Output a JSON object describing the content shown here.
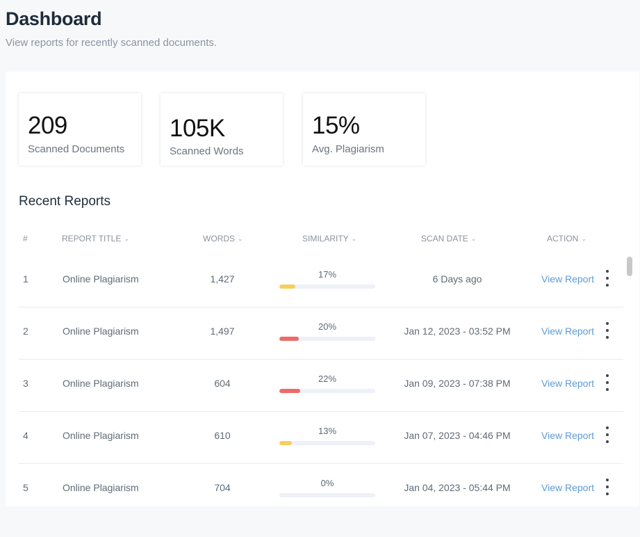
{
  "header": {
    "title": "Dashboard",
    "subtitle": "View reports for recently scanned documents."
  },
  "stats": [
    {
      "value": "209",
      "label": "Scanned Documents"
    },
    {
      "value": "105K",
      "label": "Scanned Words"
    },
    {
      "value": "15%",
      "label": "Avg. Plagiarism"
    }
  ],
  "recent": {
    "title": "Recent Reports",
    "columns": {
      "num": "#",
      "title": "REPORT TITLE",
      "words": "WORDS",
      "similarity": "SIMILARITY",
      "date": "SCAN DATE",
      "action": "ACTION"
    },
    "rows": [
      {
        "num": "1",
        "title": "Online Plagiarism",
        "words": "1,427",
        "similarity_label": "17%",
        "similarity": 17,
        "bar_color": "#f5cf5e",
        "date": "6 Days ago",
        "action": "View Report"
      },
      {
        "num": "2",
        "title": "Online Plagiarism",
        "words": "1,497",
        "similarity_label": "20%",
        "similarity": 20,
        "bar_color": "#ee6a6a",
        "date": "Jan 12, 2023 - 03:52 PM",
        "action": "View Report"
      },
      {
        "num": "3",
        "title": "Online Plagiarism",
        "words": "604",
        "similarity_label": "22%",
        "similarity": 22,
        "bar_color": "#ee6a6a",
        "date": "Jan 09, 2023 - 07:38 PM",
        "action": "View Report"
      },
      {
        "num": "4",
        "title": "Online Plagiarism",
        "words": "610",
        "similarity_label": "13%",
        "similarity": 13,
        "bar_color": "#f5cf5e",
        "date": "Jan 07, 2023 - 04:46 PM",
        "action": "View Report"
      },
      {
        "num": "5",
        "title": "Online Plagiarism",
        "words": "704",
        "similarity_label": "0%",
        "similarity": 0,
        "bar_color": "#f5cf5e",
        "date": "Jan 04, 2023 - 05:44 PM",
        "action": "View Report"
      }
    ]
  },
  "icons": {
    "sort": "chevron-down-icon",
    "row_menu": "more-vertical-icon"
  }
}
